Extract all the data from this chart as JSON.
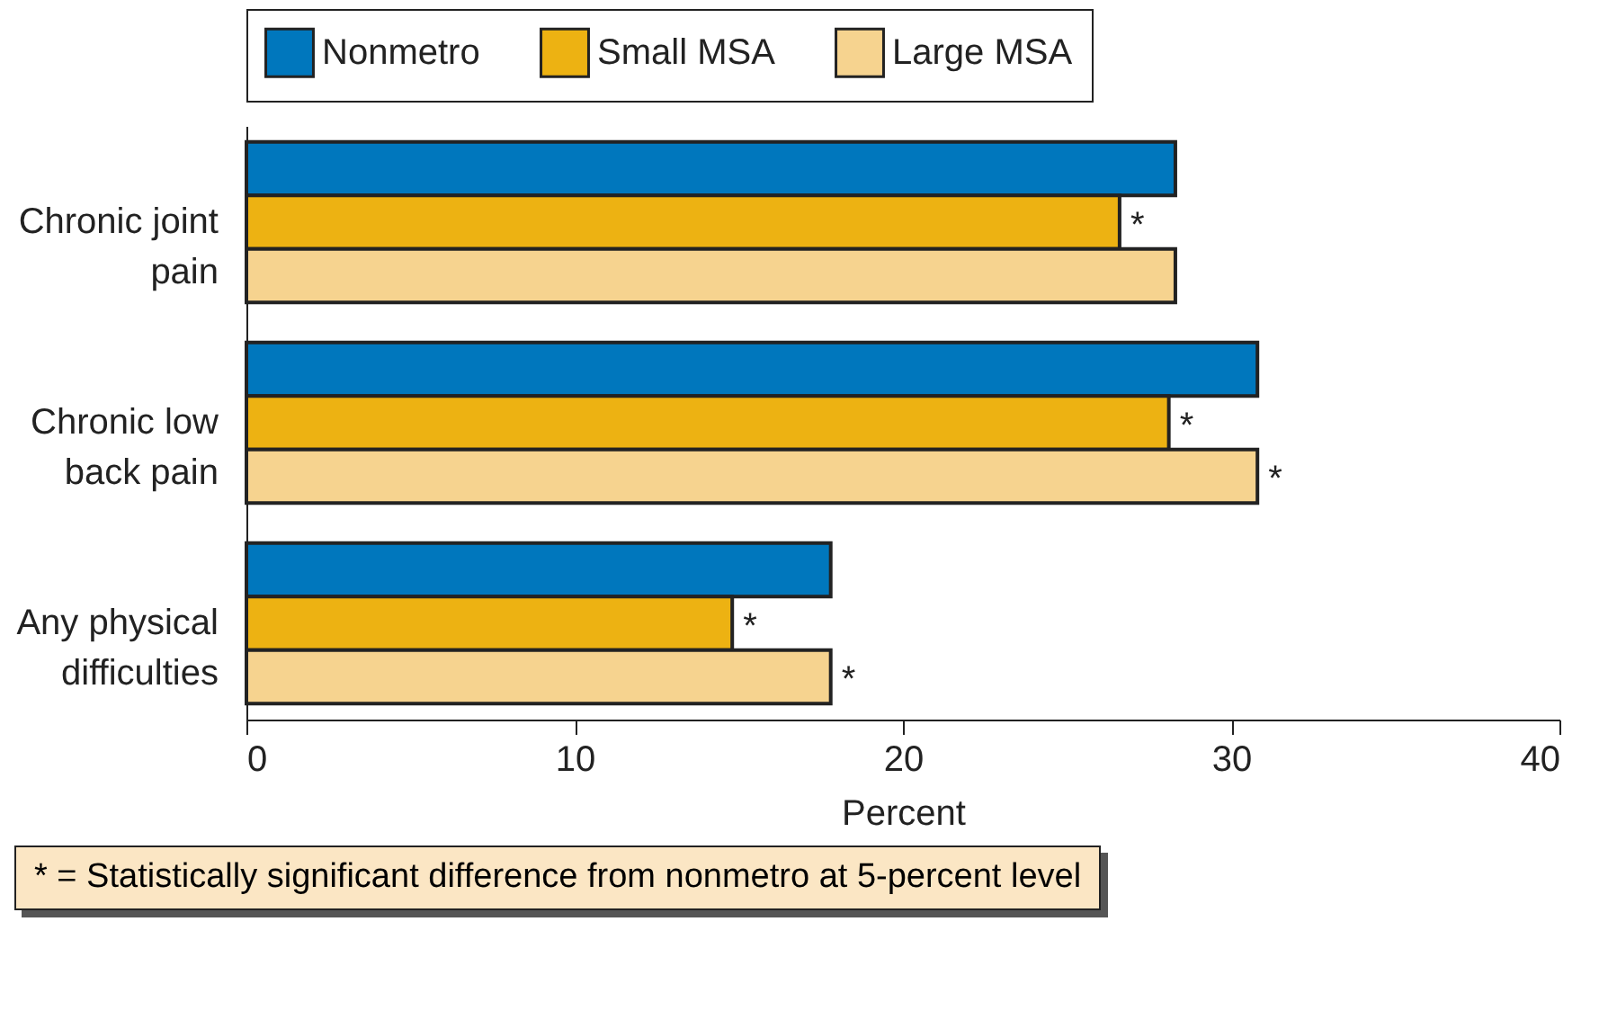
{
  "chart_data": {
    "type": "bar",
    "orientation": "horizontal",
    "xlabel": "Percent",
    "categories": [
      "Chronic joint\npain",
      "Chronic low\nback pain",
      "Any physical\ndifficulties"
    ],
    "series": [
      {
        "name": "Nonmetro",
        "color": "#0077bd",
        "values": [
          28.3,
          30.8,
          17.8
        ]
      },
      {
        "name": "Small MSA",
        "color": "#edb212",
        "values": [
          26.6,
          28.1,
          14.8
        ],
        "value_labels": [
          "*",
          "*",
          "*"
        ]
      },
      {
        "name": "Large MSA",
        "color": "#f6d38f",
        "values": [
          28.3,
          30.8,
          17.8
        ],
        "value_labels": [
          null,
          "*",
          "*"
        ]
      }
    ],
    "xlim": [
      0,
      40
    ],
    "xticks": [
      0,
      10,
      20,
      30,
      40
    ],
    "grid": false,
    "legend": "top",
    "annotations": [
      "* = Statistically significant difference from nonmetro at 5-percent level"
    ]
  }
}
